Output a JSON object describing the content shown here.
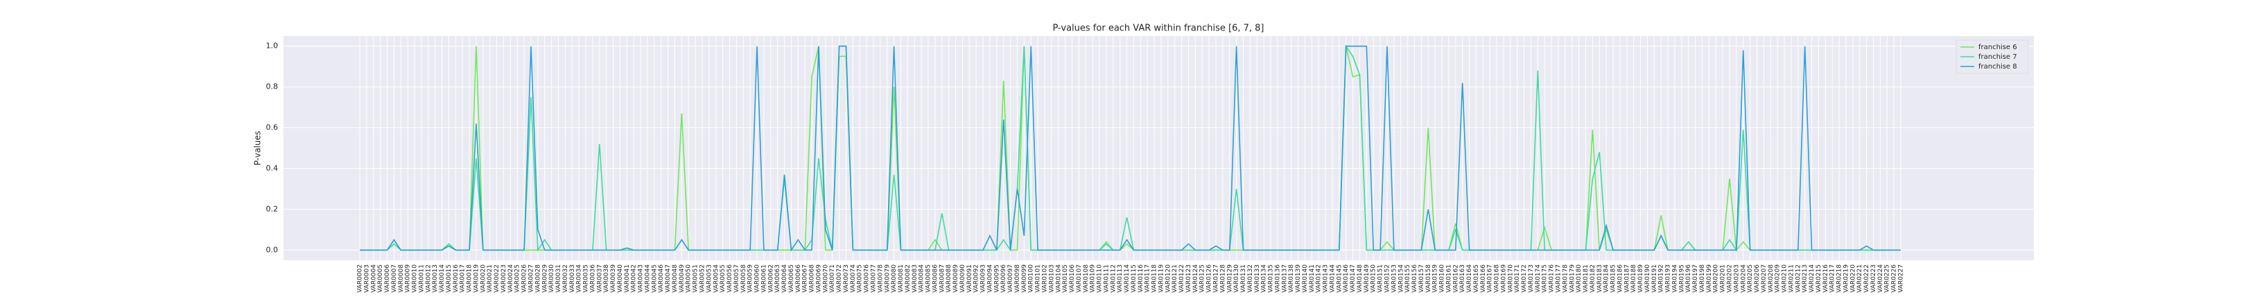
{
  "chart_data": {
    "type": "line",
    "title": "P-values for each VAR within franchise [6, 7, 8]",
    "ylabel": "P-values",
    "categories": [
      "VAR0002",
      "VAR0003",
      "VAR0004",
      "VAR0005",
      "VAR0006",
      "VAR0007",
      "VAR0008",
      "VAR0009",
      "VAR0010",
      "VAR0011",
      "VAR0012",
      "VAR0013",
      "VAR0014",
      "VAR0015",
      "VAR0016",
      "VAR0017",
      "VAR0018",
      "VAR0019",
      "VAR0020",
      "VAR0021",
      "VAR0022",
      "VAR0023",
      "VAR0024",
      "VAR0025",
      "VAR0026",
      "VAR0027",
      "VAR0028",
      "VAR0029",
      "VAR0030",
      "VAR0031",
      "VAR0032",
      "VAR0033",
      "VAR0034",
      "VAR0035",
      "VAR0036",
      "VAR0037",
      "VAR0038",
      "VAR0039",
      "VAR0040",
      "VAR0041",
      "VAR0042",
      "VAR0043",
      "VAR0044",
      "VAR0045",
      "VAR0046",
      "VAR0047",
      "VAR0048",
      "VAR0049",
      "VAR0050",
      "VAR0051",
      "VAR0052",
      "VAR0053",
      "VAR0054",
      "VAR0055",
      "VAR0056",
      "VAR0057",
      "VAR0058",
      "VAR0059",
      "VAR0060",
      "VAR0061",
      "VAR0062",
      "VAR0063",
      "VAR0064",
      "VAR0065",
      "VAR0066",
      "VAR0067",
      "VAR0068",
      "VAR0069",
      "VAR0070",
      "VAR0071",
      "VAR0072",
      "VAR0073",
      "VAR0074",
      "VAR0075",
      "VAR0076",
      "VAR0077",
      "VAR0078",
      "VAR0079",
      "VAR0080",
      "VAR0081",
      "VAR0082",
      "VAR0083",
      "VAR0084",
      "VAR0085",
      "VAR0086",
      "VAR0087",
      "VAR0088",
      "VAR0089",
      "VAR0090",
      "VAR0091",
      "VAR0092",
      "VAR0093",
      "VAR0094",
      "VAR0095",
      "VAR0096",
      "VAR0097",
      "VAR0098",
      "VAR0099",
      "VAR0100",
      "VAR0101",
      "VAR0102",
      "VAR0103",
      "VAR0104",
      "VAR0105",
      "VAR0106",
      "VAR0107",
      "VAR0108",
      "VAR0109",
      "VAR0110",
      "VAR0111",
      "VAR0112",
      "VAR0113",
      "VAR0114",
      "VAR0115",
      "VAR0116",
      "VAR0117",
      "VAR0118",
      "VAR0119",
      "VAR0120",
      "VAR0121",
      "VAR0122",
      "VAR0123",
      "VAR0124",
      "VAR0125",
      "VAR0126",
      "VAR0127",
      "VAR0128",
      "VAR0129",
      "VAR0130",
      "VAR0131",
      "VAR0132",
      "VAR0133",
      "VAR0134",
      "VAR0135",
      "VAR0136",
      "VAR0137",
      "VAR0138",
      "VAR0139",
      "VAR0140",
      "VAR0141",
      "VAR0142",
      "VAR0143",
      "VAR0144",
      "VAR0145",
      "VAR0146",
      "VAR0147",
      "VAR0148",
      "VAR0149",
      "VAR0150",
      "VAR0151",
      "VAR0152",
      "VAR0153",
      "VAR0154",
      "VAR0155",
      "VAR0156",
      "VAR0157",
      "VAR0158",
      "VAR0159",
      "VAR0160",
      "VAR0161",
      "VAR0162",
      "VAR0163",
      "VAR0164",
      "VAR0165",
      "VAR0166",
      "VAR0167",
      "VAR0168",
      "VAR0169",
      "VAR0170",
      "VAR0171",
      "VAR0172",
      "VAR0173",
      "VAR0174",
      "VAR0175",
      "VAR0176",
      "VAR0177",
      "VAR0178",
      "VAR0179",
      "VAR0180",
      "VAR0181",
      "VAR0182",
      "VAR0183",
      "VAR0184",
      "VAR0185",
      "VAR0186",
      "VAR0187",
      "VAR0188",
      "VAR0189",
      "VAR0190",
      "VAR0191",
      "VAR0192",
      "VAR0193",
      "VAR0194",
      "VAR0195",
      "VAR0196",
      "VAR0197",
      "VAR0198",
      "VAR0199",
      "VAR0200",
      "VAR0201",
      "VAR0202",
      "VAR0203",
      "VAR0204",
      "VAR0205",
      "VAR0206",
      "VAR0207",
      "VAR0208",
      "VAR0209",
      "VAR0210",
      "VAR0211",
      "VAR0212",
      "VAR0213",
      "VAR0214",
      "VAR0215",
      "VAR0216",
      "VAR0217",
      "VAR0218",
      "VAR0219",
      "VAR0220",
      "VAR0221",
      "VAR0222",
      "VAR0223",
      "VAR0224",
      "VAR0225",
      "VAR0226",
      "VAR0227"
    ],
    "series": [
      {
        "name": "franchise 6",
        "color": "#6ee85a",
        "values": [
          0,
          0,
          0,
          0,
          0,
          0.03,
          0,
          0,
          0,
          0,
          0,
          0,
          0,
          0.03,
          0,
          0,
          0,
          1,
          0,
          0,
          0,
          0,
          0,
          0,
          0,
          0,
          0,
          0,
          0,
          0,
          0,
          0,
          0,
          0,
          0,
          0,
          0,
          0,
          0,
          0,
          0,
          0,
          0,
          0,
          0,
          0,
          0,
          0.67,
          0,
          0,
          0,
          0,
          0,
          0,
          0,
          0,
          0,
          0,
          0,
          0,
          0,
          0,
          0,
          0,
          0,
          0,
          0.85,
          1,
          0,
          0,
          0.95,
          0.95,
          0,
          0,
          0,
          0,
          0,
          0,
          0.8,
          0,
          0,
          0,
          0,
          0,
          0.05,
          0,
          0,
          0,
          0,
          0,
          0,
          0,
          0,
          0,
          0.83,
          0,
          0,
          1,
          0,
          0,
          0,
          0,
          0,
          0,
          0,
          0,
          0,
          0,
          0,
          0.04,
          0,
          0,
          0.03,
          0,
          0,
          0,
          0,
          0,
          0,
          0,
          0,
          0,
          0,
          0,
          0,
          0,
          0,
          0,
          0,
          0,
          0,
          0,
          0,
          0,
          0,
          0,
          0,
          0,
          0,
          0,
          0,
          0,
          0,
          0,
          1,
          0.85,
          0.86,
          0,
          0,
          0,
          0.04,
          0,
          0,
          0,
          0,
          0,
          0.6,
          0,
          0,
          0,
          0.13,
          0,
          0,
          0,
          0,
          0,
          0,
          0,
          0,
          0,
          0,
          0,
          0,
          0.11,
          0,
          0,
          0,
          0,
          0,
          0,
          0.59,
          0,
          0.1,
          0,
          0,
          0,
          0,
          0,
          0,
          0,
          0.17,
          0,
          0,
          0,
          0.04,
          0,
          0,
          0,
          0,
          0,
          0.35,
          0,
          0.04,
          0,
          0,
          0,
          0,
          0,
          0,
          0,
          0,
          0,
          0,
          0,
          0,
          0,
          0,
          0,
          0,
          0,
          0,
          0,
          0,
          0,
          0,
          0
        ]
      },
      {
        "name": "franchise 7",
        "color": "#3ddca0",
        "values": [
          0,
          0,
          0,
          0,
          0,
          0.03,
          0,
          0,
          0,
          0,
          0,
          0,
          0,
          0.03,
          0,
          0,
          0,
          0.45,
          0,
          0,
          0,
          0,
          0,
          0,
          0,
          0.75,
          0,
          0.05,
          0,
          0,
          0,
          0,
          0,
          0,
          0,
          0.52,
          0,
          0,
          0,
          0,
          0,
          0,
          0,
          0,
          0,
          0,
          0,
          0.05,
          0,
          0,
          0,
          0,
          0,
          0,
          0,
          0,
          0,
          0,
          0,
          0,
          0,
          0,
          0.35,
          0,
          0,
          0,
          0.05,
          0.45,
          0.15,
          0,
          1,
          1,
          0,
          0,
          0,
          0,
          0,
          0,
          0.37,
          0,
          0,
          0,
          0,
          0,
          0,
          0.18,
          0,
          0,
          0,
          0,
          0,
          0,
          0,
          0,
          0.05,
          0,
          0.3,
          1,
          0,
          0,
          0,
          0,
          0,
          0,
          0,
          0,
          0,
          0,
          0,
          0.03,
          0,
          0,
          0.16,
          0,
          0,
          0,
          0,
          0,
          0,
          0,
          0,
          0,
          0,
          0,
          0,
          0,
          0,
          0,
          0.3,
          0,
          0,
          0,
          0,
          0,
          0,
          0,
          0,
          0,
          0,
          0,
          0,
          0,
          0,
          0,
          1,
          0.95,
          0.86,
          0,
          0,
          0,
          0,
          0,
          0,
          0,
          0,
          0,
          0,
          0,
          0,
          0,
          0.1,
          0,
          0,
          0,
          0,
          0,
          0,
          0,
          0,
          0,
          0,
          0,
          0.88,
          0,
          0,
          0,
          0,
          0,
          0,
          0,
          0.35,
          0.48,
          0,
          0,
          0,
          0,
          0,
          0,
          0,
          0,
          0.07,
          0,
          0,
          0,
          0.04,
          0,
          0,
          0,
          0,
          0,
          0.05,
          0,
          0.59,
          0,
          0,
          0,
          0,
          0,
          0,
          0,
          0,
          0,
          0,
          0,
          0,
          0,
          0,
          0,
          0,
          0,
          0,
          0,
          0,
          0,
          0,
          0
        ]
      },
      {
        "name": "franchise 8",
        "color": "#2a9fd6",
        "values": [
          0,
          0,
          0,
          0,
          0,
          0.05,
          0,
          0,
          0,
          0,
          0,
          0,
          0,
          0.02,
          0,
          0,
          0,
          0.62,
          0,
          0,
          0,
          0,
          0,
          0,
          0,
          1,
          0.1,
          0,
          0,
          0,
          0,
          0,
          0,
          0,
          0,
          0,
          0,
          0,
          0,
          0.01,
          0,
          0,
          0,
          0,
          0,
          0,
          0,
          0.05,
          0,
          0,
          0,
          0,
          0,
          0,
          0,
          0,
          0,
          0,
          1,
          0,
          0,
          0,
          0.37,
          0,
          0.05,
          0,
          0,
          1,
          0.1,
          0,
          1,
          1,
          0,
          0,
          0,
          0,
          0,
          0,
          1,
          0,
          0,
          0,
          0,
          0,
          0,
          0,
          0,
          0,
          0,
          0,
          0,
          0,
          0.07,
          0,
          0.64,
          0,
          0.3,
          0.07,
          1,
          0,
          0,
          0,
          0,
          0,
          0,
          0,
          0,
          0,
          0,
          0,
          0,
          0,
          0.05,
          0,
          0,
          0,
          0,
          0,
          0,
          0,
          0,
          0.03,
          0,
          0,
          0,
          0.02,
          0,
          0,
          1,
          0,
          0,
          0,
          0,
          0,
          0,
          0,
          0,
          0,
          0,
          0,
          0,
          0,
          0,
          0,
          1,
          1,
          1,
          1,
          0,
          0,
          1,
          0,
          0,
          0,
          0,
          0,
          0.2,
          0,
          0,
          0,
          0,
          0.82,
          0,
          0,
          0,
          0,
          0,
          0,
          0,
          0,
          0,
          0,
          0,
          0,
          0,
          0,
          0,
          0,
          0,
          0,
          0,
          0,
          0.12,
          0,
          0,
          0,
          0,
          0,
          0,
          0,
          0.07,
          0,
          0,
          0,
          0,
          0,
          0,
          0,
          0,
          0,
          0,
          0,
          0.98,
          0,
          0,
          0,
          0,
          0,
          0,
          0,
          0,
          1,
          0,
          0,
          0,
          0,
          0,
          0,
          0,
          0,
          0.02,
          0,
          0,
          0,
          0,
          0
        ]
      }
    ],
    "ylim": [
      -0.05,
      1.05
    ],
    "yticks": [
      {
        "value": 0,
        "label": "0.0"
      },
      0.2,
      0.4,
      0.6,
      0.8,
      {
        "value": 1,
        "label": "1.0"
      }
    ],
    "grid": true,
    "legend": "upper right"
  }
}
